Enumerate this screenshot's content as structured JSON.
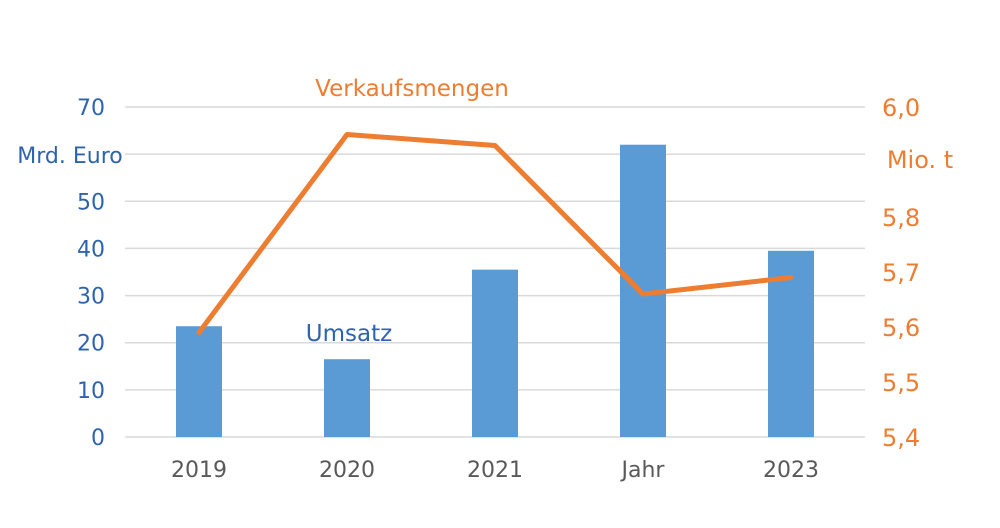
{
  "chart_data": {
    "type": "bar",
    "categories": [
      "2019",
      "2020",
      "2021",
      "Jahr",
      "2023"
    ],
    "series": [
      {
        "name": "Umsatz",
        "type": "bar",
        "axis": "left",
        "values": [
          23.5,
          16.5,
          35.5,
          62,
          39.5
        ]
      },
      {
        "name": "Verkaufsmengen",
        "type": "line",
        "axis": "right",
        "values": [
          5.59,
          5.95,
          5.93,
          5.66,
          5.69
        ]
      }
    ],
    "y_left": {
      "unit_label": "Mrd. Euro",
      "ticks": [
        "0",
        "10",
        "20",
        "30",
        "40",
        "50",
        "70"
      ],
      "ylim": [
        0,
        70
      ]
    },
    "y_right": {
      "unit_label": "Mio. t",
      "ticks": [
        "5,4",
        "5,5",
        "5,6",
        "5,7",
        "5,8",
        "6,0"
      ],
      "ylim": [
        5.4,
        6.0
      ]
    },
    "grid": true,
    "colors": {
      "bars": "#5b9bd5",
      "line": "#ed7d31",
      "left_axis_text": "#2e64ad",
      "right_axis_text": "#ed7d31",
      "x_text": "#595959",
      "grid": "#d9d9d9"
    }
  }
}
